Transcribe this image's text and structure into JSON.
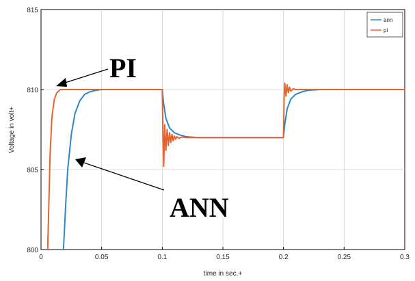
{
  "chart_data": {
    "type": "line",
    "title": "",
    "xlabel": "time in sec.+",
    "ylabel": "Voltage in volt+",
    "xlim": [
      0,
      0.3
    ],
    "ylim": [
      800,
      815
    ],
    "xticks": [
      0,
      0.05,
      0.1,
      0.15,
      0.2,
      0.25,
      0.3
    ],
    "xtick_labels": [
      "0",
      "0.05",
      "0.1",
      "0.15",
      "0.2",
      "0.25",
      "0.3"
    ],
    "yticks": [
      800,
      805,
      810,
      815
    ],
    "ytick_labels": [
      "800",
      "805",
      "810",
      "815"
    ],
    "grid": true,
    "legend_position": "top-right",
    "series": [
      {
        "name": "ann",
        "color": "#2e86c9",
        "x": [
          0.0185,
          0.0195,
          0.0205,
          0.022,
          0.025,
          0.028,
          0.032,
          0.036,
          0.04,
          0.045,
          0.05,
          0.06,
          0.1,
          0.101,
          0.103,
          0.106,
          0.11,
          0.115,
          0.12,
          0.13,
          0.2,
          0.201,
          0.203,
          0.206,
          0.21,
          0.215,
          0.22,
          0.23,
          0.3
        ],
        "y": [
          800,
          801.5,
          803,
          805,
          807.2,
          808.5,
          809.3,
          809.7,
          809.85,
          809.95,
          810,
          810,
          810,
          809.2,
          808.2,
          807.6,
          807.3,
          807.15,
          807.05,
          807,
          807,
          807.8,
          808.8,
          809.4,
          809.7,
          809.85,
          809.95,
          810,
          810
        ]
      },
      {
        "name": "pi",
        "color": "#e8622c",
        "x": [
          0.0055,
          0.0065,
          0.0075,
          0.009,
          0.011,
          0.013,
          0.016,
          0.02,
          0.025,
          0.1,
          0.1005,
          0.1012,
          0.102,
          0.103,
          0.104,
          0.105,
          0.106,
          0.107,
          0.108,
          0.109,
          0.11,
          0.111,
          0.112,
          0.114,
          0.116,
          0.12,
          0.2,
          0.2005,
          0.201,
          0.202,
          0.203,
          0.204,
          0.205,
          0.206,
          0.208,
          0.21,
          0.3
        ],
        "y": [
          800,
          803,
          806,
          808.3,
          809.4,
          809.8,
          810,
          810,
          810,
          810,
          807.5,
          805.2,
          807.8,
          806.2,
          807.5,
          806.5,
          807.3,
          806.7,
          807.2,
          806.8,
          807.1,
          806.9,
          807.05,
          806.95,
          807.03,
          807,
          807,
          809.5,
          810.4,
          809.6,
          810.3,
          809.8,
          810.15,
          809.9,
          810.05,
          810,
          810
        ]
      }
    ],
    "annotations": [
      {
        "text": "PI",
        "arrow_to": [
          0.012,
          810
        ]
      },
      {
        "text": "ANN",
        "arrow_to": [
          0.026,
          805.5
        ]
      }
    ]
  }
}
